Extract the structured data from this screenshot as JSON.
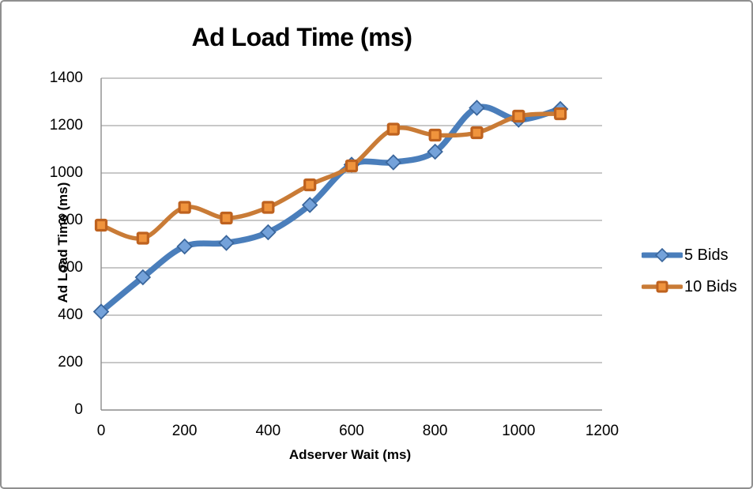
{
  "chart_data": {
    "type": "line",
    "title": "Ad Load Time (ms)",
    "xlabel": "Adserver Wait (ms)",
    "ylabel": "Ad Load Time (ms)",
    "x": [
      0,
      100,
      200,
      300,
      400,
      500,
      600,
      700,
      800,
      900,
      1000,
      1100
    ],
    "series": [
      {
        "name": "5 Bids",
        "marker": "diamond",
        "line_color": "#4A7EBB",
        "marker_fill": "#74A2DA",
        "marker_stroke": "#3A669C",
        "values": [
          415,
          560,
          690,
          705,
          750,
          865,
          1035,
          1045,
          1090,
          1275,
          1225,
          1270
        ]
      },
      {
        "name": "10 Bids",
        "marker": "square",
        "line_color": "#C97B36",
        "marker_fill": "#F0943D",
        "marker_stroke": "#BE621F",
        "values": [
          780,
          725,
          855,
          810,
          855,
          950,
          1030,
          1185,
          1160,
          1170,
          1240,
          1250
        ]
      }
    ],
    "x_ticks": [
      0,
      200,
      400,
      600,
      800,
      1000,
      1200
    ],
    "y_ticks": [
      0,
      200,
      400,
      600,
      800,
      1000,
      1200,
      1400
    ],
    "xlim": [
      0,
      1200
    ],
    "ylim": [
      0,
      1400
    ],
    "grid": "horizontal",
    "smoothed_lines": true,
    "legend_position": "right",
    "colors": {
      "gridline": "#A6A6A6",
      "axis": "#8C8C8C",
      "text": "#000000",
      "border": "#8F8F8F",
      "background": "#FFFFFF"
    }
  }
}
